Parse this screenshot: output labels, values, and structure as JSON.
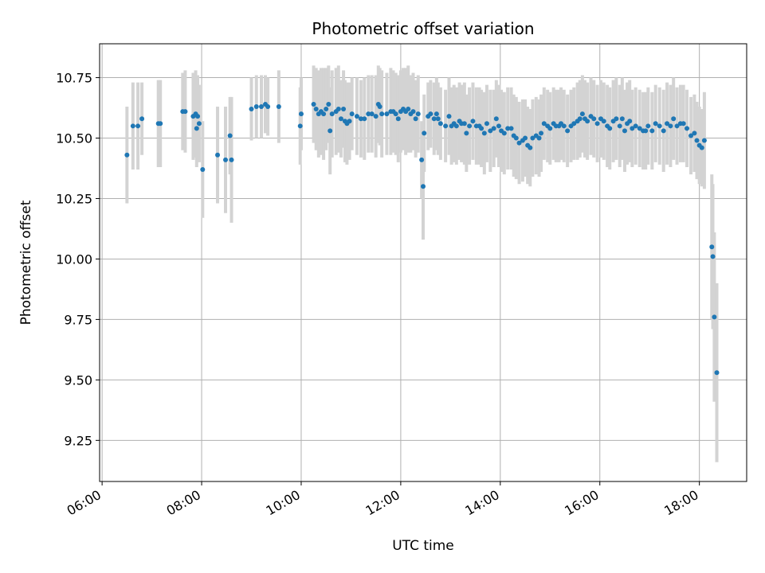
{
  "chart_data": {
    "type": "scatter",
    "title": "Photometric offset variation",
    "xlabel": "UTC time",
    "ylabel": "Photometric offset",
    "x_axis": {
      "unit": "hours since 00:00 UTC",
      "range": [
        5.95,
        18.95
      ],
      "ticks": [
        6,
        8,
        10,
        12,
        14,
        16,
        18
      ],
      "tick_labels": [
        "06:00",
        "08:00",
        "10:00",
        "12:00",
        "14:00",
        "16:00",
        "18:00"
      ]
    },
    "y_axis": {
      "range": [
        9.08,
        10.89
      ],
      "ticks": [
        9.25,
        9.5,
        9.75,
        10.0,
        10.25,
        10.5,
        10.75
      ],
      "tick_labels": [
        "9.25",
        "9.50",
        "9.75",
        "10.00",
        "10.25",
        "10.50",
        "10.75"
      ]
    },
    "grid": true,
    "colors": {
      "points": "#1f77b4",
      "errorbars": "#d3d3d3",
      "grid": "#b0b0b0"
    },
    "points": [
      [
        6.5,
        10.43,
        0.2
      ],
      [
        6.62,
        10.55,
        0.18
      ],
      [
        6.72,
        10.55,
        0.18
      ],
      [
        6.8,
        10.58,
        0.15
      ],
      [
        7.13,
        10.56,
        0.18
      ],
      [
        7.17,
        10.56,
        0.18
      ],
      [
        7.62,
        10.61,
        0.16
      ],
      [
        7.67,
        10.61,
        0.17
      ],
      [
        7.83,
        10.59,
        0.18
      ],
      [
        7.88,
        10.6,
        0.18
      ],
      [
        7.92,
        10.59,
        0.17
      ],
      [
        7.9,
        10.54,
        0.16
      ],
      [
        7.95,
        10.56,
        0.16
      ],
      [
        8.02,
        10.37,
        0.2
      ],
      [
        8.32,
        10.43,
        0.2
      ],
      [
        8.48,
        10.41,
        0.22
      ],
      [
        8.57,
        10.51,
        0.16
      ],
      [
        8.6,
        10.41,
        0.26
      ],
      [
        9.0,
        10.62,
        0.13
      ],
      [
        9.1,
        10.63,
        0.13
      ],
      [
        9.2,
        10.63,
        0.13
      ],
      [
        9.28,
        10.64,
        0.12
      ],
      [
        9.33,
        10.63,
        0.12
      ],
      [
        9.55,
        10.63,
        0.15
      ],
      [
        9.98,
        10.55,
        0.16
      ],
      [
        10.0,
        10.6,
        0.15
      ],
      [
        10.25,
        10.64,
        0.16
      ],
      [
        10.3,
        10.62,
        0.17
      ],
      [
        10.35,
        10.6,
        0.18
      ],
      [
        10.4,
        10.61,
        0.18
      ],
      [
        10.45,
        10.6,
        0.19
      ],
      [
        10.5,
        10.62,
        0.17
      ],
      [
        10.55,
        10.64,
        0.16
      ],
      [
        10.58,
        10.53,
        0.18
      ],
      [
        10.62,
        10.6,
        0.18
      ],
      [
        10.7,
        10.61,
        0.18
      ],
      [
        10.75,
        10.62,
        0.18
      ],
      [
        10.8,
        10.58,
        0.16
      ],
      [
        10.85,
        10.62,
        0.16
      ],
      [
        10.88,
        10.57,
        0.17
      ],
      [
        10.92,
        10.56,
        0.17
      ],
      [
        10.97,
        10.57,
        0.16
      ],
      [
        11.02,
        10.6,
        0.15
      ],
      [
        11.12,
        10.59,
        0.16
      ],
      [
        11.2,
        10.58,
        0.16
      ],
      [
        11.27,
        10.58,
        0.17
      ],
      [
        11.35,
        10.6,
        0.16
      ],
      [
        11.42,
        10.6,
        0.16
      ],
      [
        11.5,
        10.59,
        0.17
      ],
      [
        11.55,
        10.64,
        0.16
      ],
      [
        11.58,
        10.63,
        0.16
      ],
      [
        11.62,
        10.6,
        0.18
      ],
      [
        11.72,
        10.6,
        0.17
      ],
      [
        11.8,
        10.61,
        0.18
      ],
      [
        11.85,
        10.61,
        0.17
      ],
      [
        11.9,
        10.6,
        0.17
      ],
      [
        11.95,
        10.58,
        0.18
      ],
      [
        12.0,
        10.61,
        0.17
      ],
      [
        12.05,
        10.62,
        0.17
      ],
      [
        12.1,
        10.61,
        0.18
      ],
      [
        12.15,
        10.62,
        0.18
      ],
      [
        12.2,
        10.6,
        0.16
      ],
      [
        12.25,
        10.61,
        0.16
      ],
      [
        12.3,
        10.58,
        0.16
      ],
      [
        12.35,
        10.6,
        0.16
      ],
      [
        12.42,
        10.41,
        0.16
      ],
      [
        12.45,
        10.3,
        0.22
      ],
      [
        12.47,
        10.52,
        0.16
      ],
      [
        12.55,
        10.59,
        0.14
      ],
      [
        12.6,
        10.6,
        0.14
      ],
      [
        12.67,
        10.58,
        0.15
      ],
      [
        12.72,
        10.6,
        0.15
      ],
      [
        12.75,
        10.58,
        0.15
      ],
      [
        12.8,
        10.56,
        0.15
      ],
      [
        12.9,
        10.55,
        0.15
      ],
      [
        12.97,
        10.59,
        0.16
      ],
      [
        13.02,
        10.55,
        0.16
      ],
      [
        13.07,
        10.56,
        0.16
      ],
      [
        13.12,
        10.55,
        0.16
      ],
      [
        13.18,
        10.57,
        0.16
      ],
      [
        13.22,
        10.56,
        0.16
      ],
      [
        13.28,
        10.56,
        0.17
      ],
      [
        13.32,
        10.52,
        0.16
      ],
      [
        13.38,
        10.55,
        0.16
      ],
      [
        13.45,
        10.57,
        0.16
      ],
      [
        13.52,
        10.55,
        0.16
      ],
      [
        13.58,
        10.55,
        0.16
      ],
      [
        13.62,
        10.54,
        0.16
      ],
      [
        13.68,
        10.52,
        0.17
      ],
      [
        13.73,
        10.56,
        0.16
      ],
      [
        13.8,
        10.53,
        0.17
      ],
      [
        13.87,
        10.54,
        0.16
      ],
      [
        13.92,
        10.58,
        0.16
      ],
      [
        13.97,
        10.55,
        0.17
      ],
      [
        14.02,
        10.53,
        0.17
      ],
      [
        14.08,
        10.52,
        0.17
      ],
      [
        14.15,
        10.54,
        0.17
      ],
      [
        14.22,
        10.54,
        0.17
      ],
      [
        14.27,
        10.51,
        0.17
      ],
      [
        14.32,
        10.5,
        0.17
      ],
      [
        14.38,
        10.48,
        0.17
      ],
      [
        14.45,
        10.49,
        0.17
      ],
      [
        14.5,
        10.5,
        0.16
      ],
      [
        14.55,
        10.47,
        0.16
      ],
      [
        14.6,
        10.46,
        0.16
      ],
      [
        14.65,
        10.5,
        0.16
      ],
      [
        14.72,
        10.51,
        0.16
      ],
      [
        14.78,
        10.5,
        0.16
      ],
      [
        14.82,
        10.52,
        0.16
      ],
      [
        14.88,
        10.56,
        0.15
      ],
      [
        14.95,
        10.55,
        0.15
      ],
      [
        15.0,
        10.54,
        0.15
      ],
      [
        15.07,
        10.56,
        0.15
      ],
      [
        15.12,
        10.55,
        0.15
      ],
      [
        15.18,
        10.55,
        0.15
      ],
      [
        15.22,
        10.56,
        0.15
      ],
      [
        15.28,
        10.55,
        0.15
      ],
      [
        15.35,
        10.53,
        0.15
      ],
      [
        15.42,
        10.55,
        0.15
      ],
      [
        15.48,
        10.56,
        0.15
      ],
      [
        15.55,
        10.57,
        0.16
      ],
      [
        15.6,
        10.58,
        0.16
      ],
      [
        15.65,
        10.6,
        0.16
      ],
      [
        15.7,
        10.58,
        0.16
      ],
      [
        15.75,
        10.57,
        0.16
      ],
      [
        15.82,
        10.59,
        0.16
      ],
      [
        15.88,
        10.58,
        0.16
      ],
      [
        15.95,
        10.56,
        0.16
      ],
      [
        16.02,
        10.58,
        0.16
      ],
      [
        16.08,
        10.57,
        0.16
      ],
      [
        16.15,
        10.55,
        0.17
      ],
      [
        16.2,
        10.54,
        0.17
      ],
      [
        16.27,
        10.57,
        0.17
      ],
      [
        16.33,
        10.58,
        0.17
      ],
      [
        16.4,
        10.55,
        0.17
      ],
      [
        16.45,
        10.58,
        0.17
      ],
      [
        16.5,
        10.53,
        0.17
      ],
      [
        16.55,
        10.56,
        0.17
      ],
      [
        16.6,
        10.57,
        0.17
      ],
      [
        16.65,
        10.54,
        0.16
      ],
      [
        16.72,
        10.55,
        0.16
      ],
      [
        16.8,
        10.54,
        0.16
      ],
      [
        16.87,
        10.53,
        0.16
      ],
      [
        16.92,
        10.53,
        0.16
      ],
      [
        16.97,
        10.55,
        0.16
      ],
      [
        17.05,
        10.53,
        0.16
      ],
      [
        17.12,
        10.56,
        0.16
      ],
      [
        17.2,
        10.55,
        0.16
      ],
      [
        17.28,
        10.53,
        0.17
      ],
      [
        17.35,
        10.56,
        0.17
      ],
      [
        17.42,
        10.55,
        0.17
      ],
      [
        17.48,
        10.58,
        0.17
      ],
      [
        17.55,
        10.55,
        0.16
      ],
      [
        17.62,
        10.56,
        0.16
      ],
      [
        17.68,
        10.56,
        0.16
      ],
      [
        17.75,
        10.54,
        0.16
      ],
      [
        17.83,
        10.51,
        0.16
      ],
      [
        17.9,
        10.52,
        0.16
      ],
      [
        17.95,
        10.49,
        0.16
      ],
      [
        18.0,
        10.47,
        0.16
      ],
      [
        18.05,
        10.46,
        0.16
      ],
      [
        18.1,
        10.49,
        0.2
      ],
      [
        18.25,
        10.05,
        0.3
      ],
      [
        18.27,
        10.01,
        0.3
      ],
      [
        18.3,
        9.76,
        0.35
      ],
      [
        18.35,
        9.53,
        0.37
      ]
    ]
  }
}
